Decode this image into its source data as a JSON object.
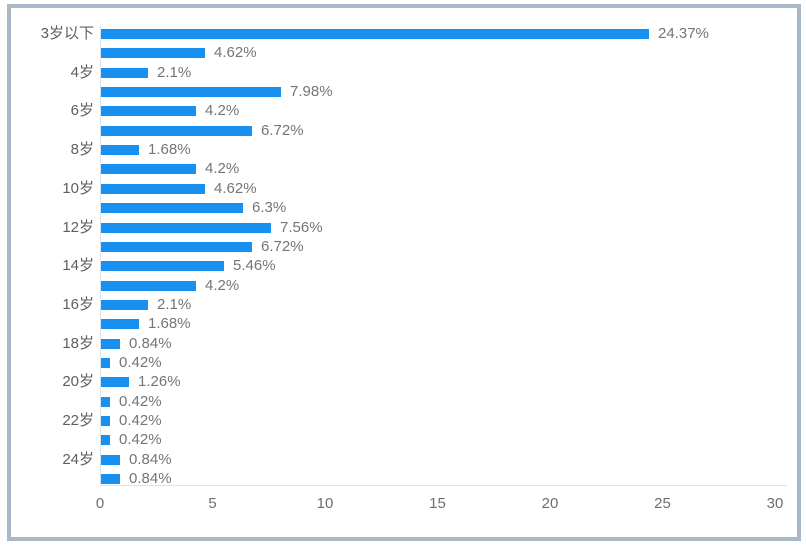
{
  "chart_data": {
    "type": "bar",
    "orientation": "horizontal",
    "title": "",
    "xlabel": "",
    "ylabel": "",
    "xlim": [
      0,
      30
    ],
    "x_ticks": [
      "0",
      "5",
      "10",
      "15",
      "20",
      "25",
      "30"
    ],
    "x_tick_values": [
      0,
      5,
      10,
      15,
      20,
      25,
      30
    ],
    "grid": false,
    "legend": false,
    "visible_category_labels": [
      "3岁以下",
      "4岁",
      "6岁",
      "8岁",
      "10岁",
      "12岁",
      "14岁",
      "16岁",
      "18岁",
      "20岁",
      "22岁",
      "24岁"
    ],
    "bars": [
      {
        "category": "3岁以下",
        "value": 24.37,
        "label": "24.37%"
      },
      {
        "category": "",
        "value": 4.62,
        "label": "4.62%"
      },
      {
        "category": "4岁",
        "value": 2.1,
        "label": "2.1%"
      },
      {
        "category": "",
        "value": 7.98,
        "label": "7.98%"
      },
      {
        "category": "6岁",
        "value": 4.2,
        "label": "4.2%"
      },
      {
        "category": "",
        "value": 6.72,
        "label": "6.72%"
      },
      {
        "category": "8岁",
        "value": 1.68,
        "label": "1.68%"
      },
      {
        "category": "",
        "value": 4.2,
        "label": "4.2%"
      },
      {
        "category": "10岁",
        "value": 4.62,
        "label": "4.62%"
      },
      {
        "category": "",
        "value": 6.3,
        "label": "6.3%"
      },
      {
        "category": "12岁",
        "value": 7.56,
        "label": "7.56%"
      },
      {
        "category": "",
        "value": 6.72,
        "label": "6.72%"
      },
      {
        "category": "14岁",
        "value": 5.46,
        "label": "5.46%"
      },
      {
        "category": "",
        "value": 4.2,
        "label": "4.2%"
      },
      {
        "category": "16岁",
        "value": 2.1,
        "label": "2.1%"
      },
      {
        "category": "",
        "value": 1.68,
        "label": "1.68%"
      },
      {
        "category": "18岁",
        "value": 0.84,
        "label": "0.84%"
      },
      {
        "category": "",
        "value": 0.42,
        "label": "0.42%"
      },
      {
        "category": "20岁",
        "value": 1.26,
        "label": "1.26%"
      },
      {
        "category": "",
        "value": 0.42,
        "label": "0.42%"
      },
      {
        "category": "22岁",
        "value": 0.42,
        "label": "0.42%"
      },
      {
        "category": "",
        "value": 0.42,
        "label": "0.42%"
      },
      {
        "category": "24岁",
        "value": 0.84,
        "label": "0.84%"
      },
      {
        "category": "",
        "value": 0.84,
        "label": "0.84%"
      }
    ],
    "colors": {
      "bar": "#1890f0",
      "value_label": "#757575",
      "category_label": "#5f5f5f",
      "axis_line": "#dde2ea",
      "tick_label": "#6e6e6e",
      "frame_border": "#a9b8c6",
      "background": "#ffffff"
    }
  }
}
